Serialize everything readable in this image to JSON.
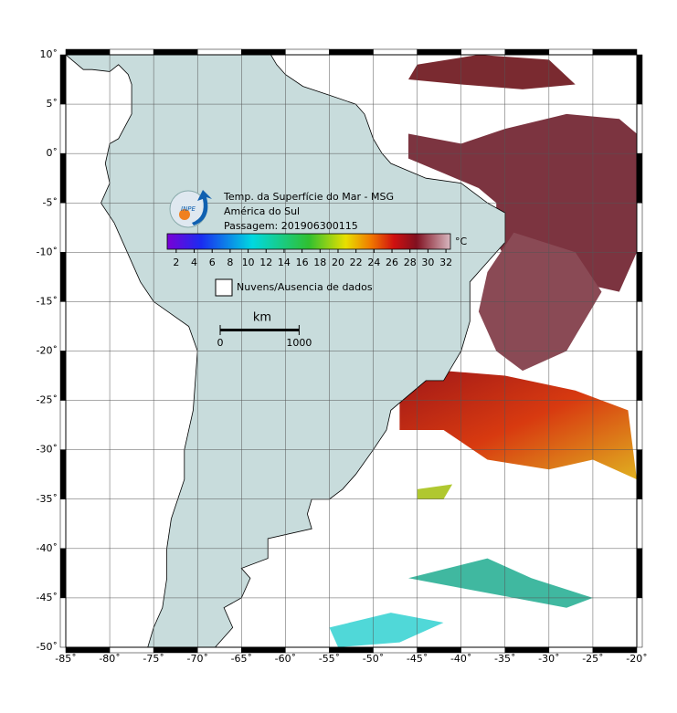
{
  "map": {
    "xlim": [
      -85,
      -20
    ],
    "ylim": [
      -50,
      10
    ],
    "xticks": [
      {
        "value": -85,
        "label": "-85˚"
      },
      {
        "value": -80,
        "label": "-80˚"
      },
      {
        "value": -75,
        "label": "-75˚"
      },
      {
        "value": -70,
        "label": "-70˚"
      },
      {
        "value": -65,
        "label": "-65˚"
      },
      {
        "value": -60,
        "label": "-60˚"
      },
      {
        "value": -55,
        "label": "-55˚"
      },
      {
        "value": -50,
        "label": "-50˚"
      },
      {
        "value": -45,
        "label": "-45˚"
      },
      {
        "value": -40,
        "label": "-40˚"
      },
      {
        "value": -35,
        "label": "-35˚"
      },
      {
        "value": -30,
        "label": "-30˚"
      },
      {
        "value": -25,
        "label": "-25˚"
      },
      {
        "value": -20,
        "label": "-20˚"
      }
    ],
    "yticks": [
      {
        "value": 10,
        "label": "10˚"
      },
      {
        "value": 5,
        "label": "5˚"
      },
      {
        "value": 0,
        "label": "0˚"
      },
      {
        "value": -5,
        "label": "-5˚"
      },
      {
        "value": -10,
        "label": "-10˚"
      },
      {
        "value": -15,
        "label": "-15˚"
      },
      {
        "value": -20,
        "label": "-20˚"
      },
      {
        "value": -25,
        "label": "-25˚"
      },
      {
        "value": -30,
        "label": "-30˚"
      },
      {
        "value": -35,
        "label": "-35˚"
      },
      {
        "value": -40,
        "label": "-40˚"
      },
      {
        "value": -45,
        "label": "-45˚"
      },
      {
        "value": -50,
        "label": "-50˚"
      }
    ],
    "title_lines": [
      "Temp. da Superfície do Mar - MSG",
      "América do Sul",
      "Passagem: 201906300115"
    ],
    "logo": "INPE",
    "colorbar": {
      "lim": [
        1,
        32.5
      ],
      "ticks": [
        2,
        4,
        6,
        8,
        10,
        12,
        14,
        16,
        18,
        20,
        22,
        24,
        26,
        28,
        30,
        32
      ],
      "unit": "°C"
    },
    "legend": "Nuvens/Ausencia de dados",
    "scale": {
      "unit": "km",
      "ticks": [
        0,
        1000
      ]
    }
  }
}
